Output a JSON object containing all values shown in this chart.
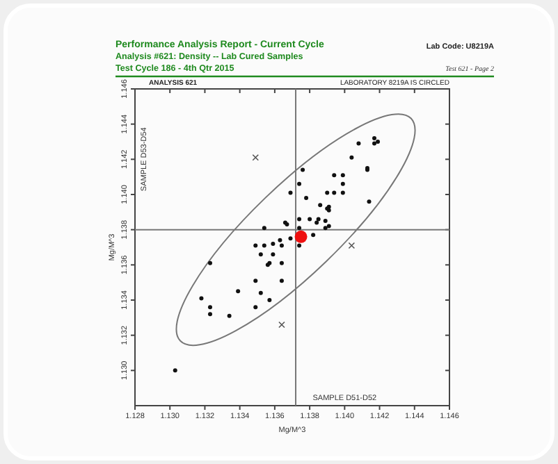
{
  "chart_data": {
    "type": "scatter",
    "title": "Performance Analysis Report - Current Cycle",
    "subtitle": "Analysis #621: Density -- Lab Cured Samples\nTest Cycle 186 - 4th Qtr 2015",
    "xlabel": "Mg/M^3",
    "ylabel": "Mg/M^3",
    "annotations": [
      "Lab Code: U8219A",
      "Test 621 - Page 2",
      "ANALYSIS 621",
      "LABORATORY 8219A IS CIRCLED",
      "SAMPLE D53-D54",
      "SAMPLE D51-D52"
    ],
    "xlim": [
      1.128,
      1.146
    ],
    "ylim": [
      1.128,
      1.146
    ],
    "xticks": [
      1.128,
      {
        "value": 1.13,
        "label": "1.130"
      },
      1.132,
      1.134,
      1.136,
      1.138,
      {
        "value": 1.14,
        "label": "1.140"
      },
      1.142,
      1.144,
      1.146
    ],
    "yticks": [
      {
        "value": 1.13,
        "label": "1.130"
      },
      1.132,
      1.134,
      1.136,
      1.138,
      {
        "value": 1.14,
        "label": "1.140"
      },
      1.142,
      1.144,
      1.146
    ],
    "grid": false,
    "ref_lines": [
      {
        "axis": "x",
        "value": 1.1372,
        "color": "#777777"
      },
      {
        "axis": "y",
        "value": 1.138,
        "color": "#777777"
      }
    ],
    "series": [
      {
        "color": "#111111",
        "marker": "circle",
        "x": [
          1.1417,
          1.1419,
          1.1417,
          1.1408,
          1.1404,
          1.1413,
          1.1413,
          1.1376,
          1.1394,
          1.1399,
          1.1374,
          1.1399,
          1.1369,
          1.139,
          1.1394,
          1.1399,
          1.1378,
          1.1414,
          1.1386,
          1.1391,
          1.139,
          1.1391,
          1.1366,
          1.1367,
          1.1354,
          1.1374,
          1.138,
          1.1385,
          1.1384,
          1.1389,
          1.1389,
          1.1391,
          1.1374,
          1.1382,
          1.1349,
          1.1354,
          1.1359,
          1.1363,
          1.1364,
          1.1374,
          1.1369,
          1.1352,
          1.1359,
          1.1357,
          1.1356,
          1.1364,
          1.1323,
          1.1349,
          1.1364,
          1.1339,
          1.1352,
          1.1318,
          1.1323,
          1.1323,
          1.1334,
          1.1349,
          1.1357,
          1.1303
        ],
        "values": [
          1.1432,
          1.143,
          1.1429,
          1.1429,
          1.1421,
          1.1415,
          1.1414,
          1.1414,
          1.1411,
          1.1411,
          1.1406,
          1.1406,
          1.1401,
          1.1401,
          1.1401,
          1.1401,
          1.1398,
          1.1396,
          1.1394,
          1.1393,
          1.1392,
          1.1391,
          1.1384,
          1.1383,
          1.1381,
          1.1386,
          1.1386,
          1.1386,
          1.1384,
          1.1385,
          1.1381,
          1.1382,
          1.1381,
          1.1377,
          1.1371,
          1.1371,
          1.1372,
          1.1374,
          1.1371,
          1.1371,
          1.1375,
          1.1366,
          1.1366,
          1.1361,
          1.136,
          1.1361,
          1.1361,
          1.1351,
          1.1351,
          1.1345,
          1.1344,
          1.1341,
          1.1336,
          1.1332,
          1.1331,
          1.1336,
          1.134,
          1.13
        ]
      },
      {
        "color": "#555555",
        "marker": "cross",
        "x": [
          1.1349,
          1.1404,
          1.1364
        ],
        "values": [
          1.1421,
          1.1371,
          1.1326
        ]
      },
      {
        "color": "#ee1111",
        "marker": "circle",
        "x": [
          1.1375
        ],
        "values": [
          1.1376
        ]
      }
    ]
  }
}
